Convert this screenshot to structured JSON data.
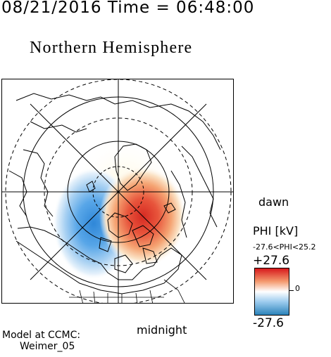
{
  "header": {
    "timestamp": "08/21/2016 Time = 06:48:00",
    "title": "Northern Hemisphere"
  },
  "map": {
    "dawn_label": "dawn",
    "midnight_label": "midnight",
    "projection": "polar stereographic, north pole centered",
    "grid_lines": "latitude circles (dashed and solid) and meridians every 45 degrees",
    "potential_pattern": "two-cell convection: negative cell on the dusk/midnight side, positive cell on the dawn side"
  },
  "colorbar": {
    "title": "PHI [kV]",
    "range_text": "-27.6<PHI<25.2",
    "max_label": "+27.6",
    "min_label": "-27.6",
    "zero_label": "0",
    "colors": {
      "positive": "#d7191c",
      "mid": "#ffffff",
      "negative": "#2b83ba"
    }
  },
  "footer": {
    "model_line1": "Model at CCMC:",
    "model_line2": "Weimer_05"
  }
}
